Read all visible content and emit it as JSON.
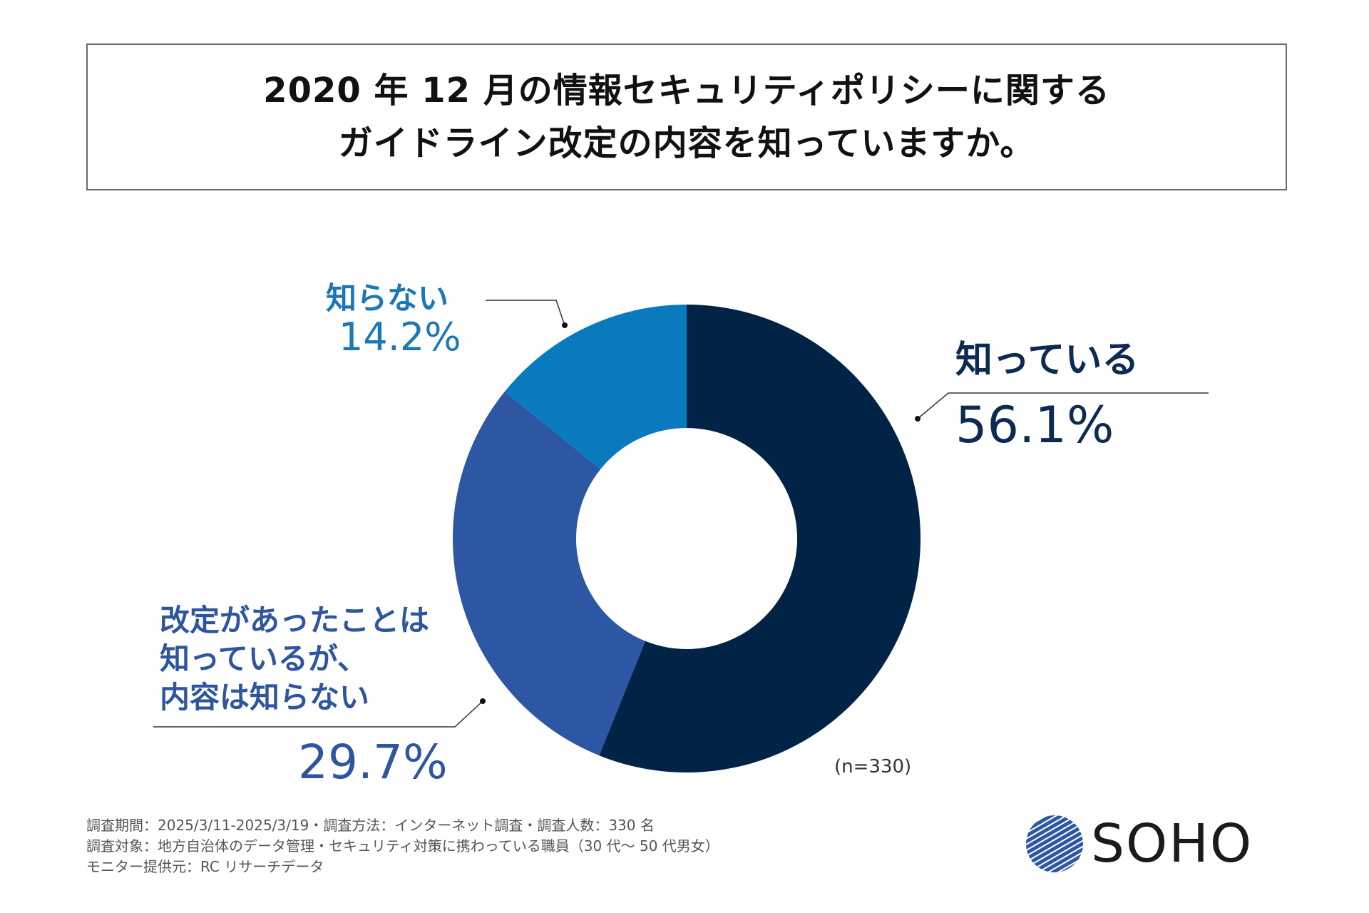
{
  "title": {
    "line1": "2020 年 12 月の情報セキュリティポリシーに関する",
    "line2": "ガイドライン改定の内容を知っていますか。"
  },
  "chart_data": {
    "type": "pie",
    "variant": "donut",
    "sample_size_label": "(n=330)",
    "slices": [
      {
        "label": "知っている",
        "value": 56.1,
        "value_label": "56.1%",
        "color": "#012346"
      },
      {
        "label_lines": [
          "改定があったことは",
          "知っているが、",
          "内容は知らない"
        ],
        "value": 29.7,
        "value_label": "29.7%",
        "color": "#2d56a3"
      },
      {
        "label": "知らない",
        "value": 14.2,
        "value_label": "14.2%",
        "color": "#0a7abf"
      }
    ]
  },
  "footnotes": [
    "調査期間：2025/3/11-2025/3/19・調査方法：インターネット調査・調査人数：330 名",
    "調査対象：地方自治体のデータ管理・セキュリティ対策に携わっている職員（30 代〜 50 代男女）",
    "モニター提供元：RC リサーチデータ"
  ],
  "logo": {
    "text": "SOHO"
  }
}
